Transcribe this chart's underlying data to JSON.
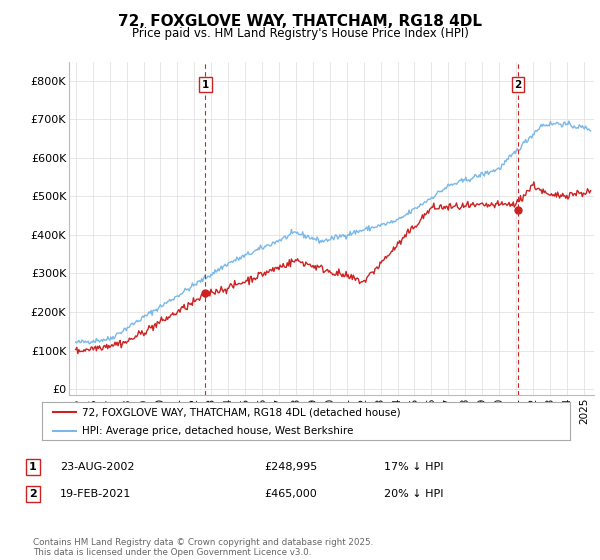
{
  "title": "72, FOXGLOVE WAY, THATCHAM, RG18 4DL",
  "subtitle": "Price paid vs. HM Land Registry's House Price Index (HPI)",
  "yticks": [
    0,
    100000,
    200000,
    300000,
    400000,
    500000,
    600000,
    700000,
    800000
  ],
  "ytick_labels": [
    "£0",
    "£100K",
    "£200K",
    "£300K",
    "£400K",
    "£500K",
    "£600K",
    "£700K",
    "£800K"
  ],
  "ylim": [
    -15000,
    850000
  ],
  "xlim_start": 1994.6,
  "xlim_end": 2025.6,
  "hpi_color": "#7ab8e8",
  "price_color": "#cc2222",
  "vline_color": "#cc2222",
  "marker1_x": 2002.65,
  "marker1_y": 248995,
  "marker2_x": 2021.12,
  "marker2_y": 465000,
  "legend_price_label": "72, FOXGLOVE WAY, THATCHAM, RG18 4DL (detached house)",
  "legend_hpi_label": "HPI: Average price, detached house, West Berkshire",
  "table_row1": [
    "1",
    "23-AUG-2002",
    "£248,995",
    "17% ↓ HPI"
  ],
  "table_row2": [
    "2",
    "19-FEB-2021",
    "£465,000",
    "20% ↓ HPI"
  ],
  "footer": "Contains HM Land Registry data © Crown copyright and database right 2025.\nThis data is licensed under the Open Government Licence v3.0.",
  "background_color": "#ffffff",
  "grid_color": "#dddddd"
}
